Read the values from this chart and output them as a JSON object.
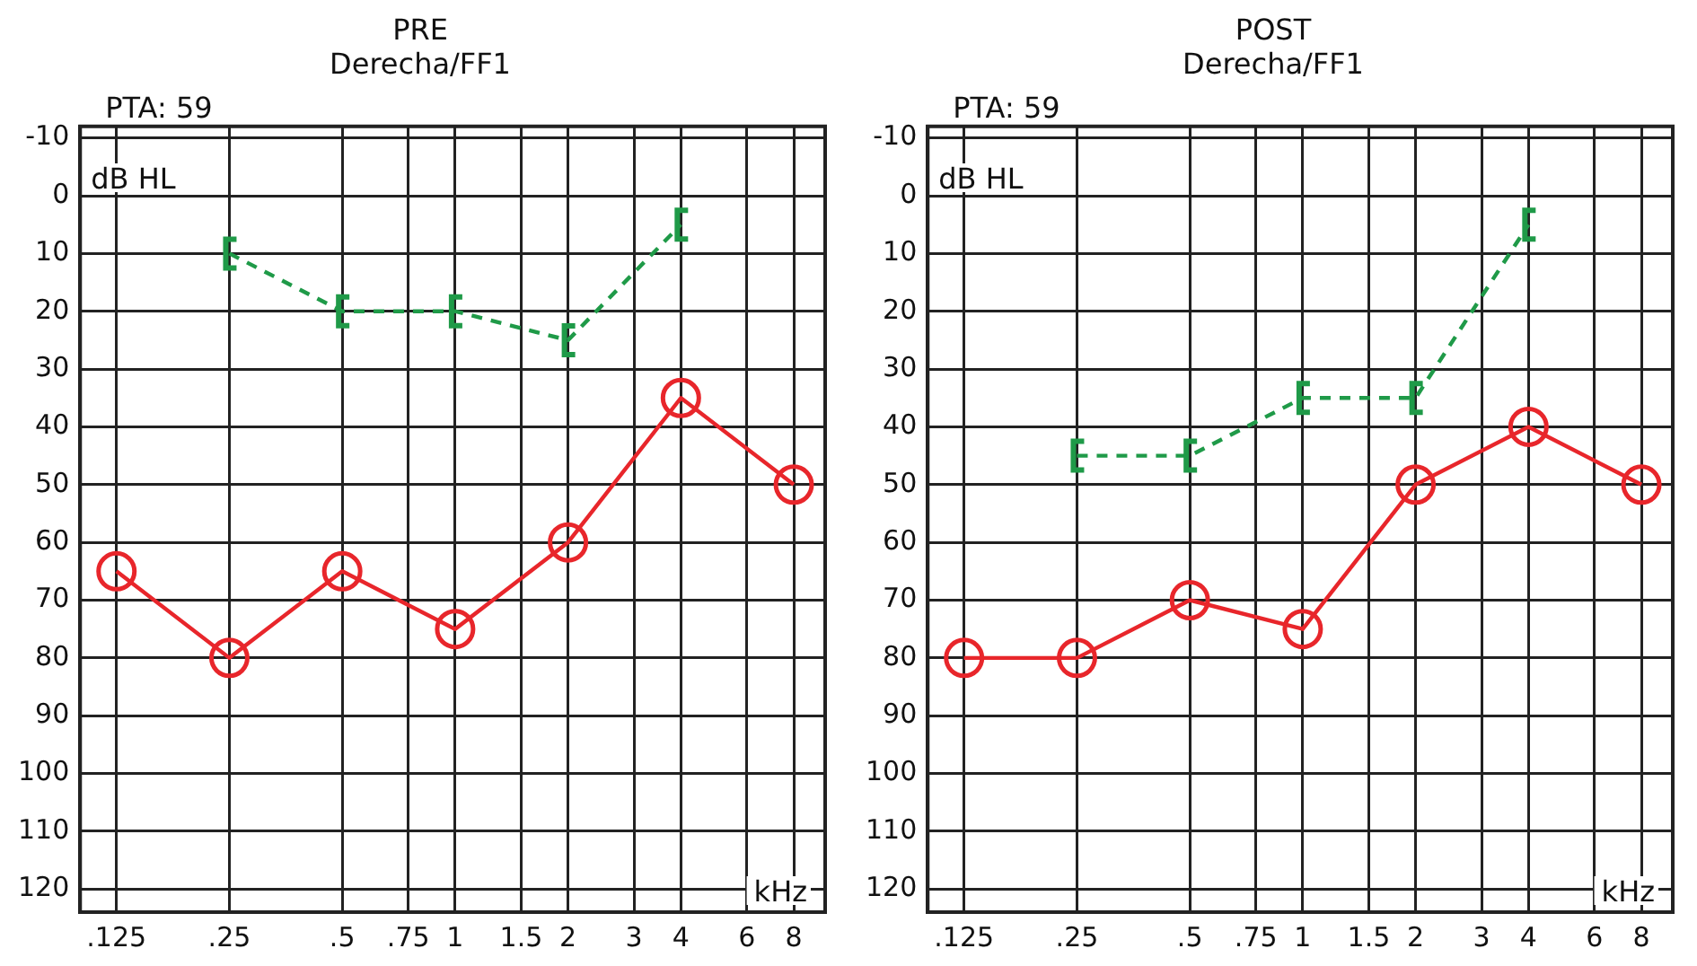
{
  "chart_data": [
    {
      "type": "line",
      "title": "PRE",
      "subtitle": "Derecha/FF1",
      "xlabel": "kHz",
      "ylabel": "dB HL",
      "annotations": [
        "PTA: 59"
      ],
      "log": "x",
      "xlim": [
        0.1,
        9.7
      ],
      "xticks": [
        {
          "value": 0.125,
          "label": ".125"
        },
        {
          "value": 0.25,
          "label": ".25"
        },
        {
          "value": 0.5,
          "label": ".5"
        },
        {
          "value": 0.75,
          "label": ".75"
        },
        1,
        1.5,
        2,
        3,
        4,
        6,
        8
      ],
      "ylim": [
        124,
        -12
      ],
      "yticks": [
        -10,
        0,
        10,
        20,
        30,
        40,
        50,
        60,
        70,
        80,
        90,
        100,
        110,
        120
      ],
      "grid": true,
      "series": [
        {
          "x": [
            0.125,
            0.25,
            0.5,
            1,
            2,
            4,
            8
          ],
          "values": [
            65,
            80,
            65,
            75,
            60,
            35,
            50
          ],
          "color": "#e8262b",
          "marker": "circle",
          "line_style": "solid"
        },
        {
          "x": [
            0.25,
            0.5,
            1,
            2,
            4
          ],
          "values": [
            10,
            20,
            20,
            25,
            5
          ],
          "color": "#1f9a48",
          "marker": "cross",
          "line_style": "dashed"
        }
      ]
    },
    {
      "type": "line",
      "title": "POST",
      "subtitle": "Derecha/FF1",
      "xlabel": "kHz",
      "ylabel": "dB HL",
      "annotations": [
        "PTA: 59"
      ],
      "log": "x",
      "xlim": [
        0.1,
        9.7
      ],
      "xticks": [
        {
          "value": 0.125,
          "label": ".125"
        },
        {
          "value": 0.25,
          "label": ".25"
        },
        {
          "value": 0.5,
          "label": ".5"
        },
        {
          "value": 0.75,
          "label": ".75"
        },
        1,
        1.5,
        2,
        3,
        4,
        6,
        8
      ],
      "ylim": [
        124,
        -12
      ],
      "yticks": [
        -10,
        0,
        10,
        20,
        30,
        40,
        50,
        60,
        70,
        80,
        90,
        100,
        110,
        120
      ],
      "grid": true,
      "series": [
        {
          "x": [
            0.125,
            0.25,
            0.5,
            1,
            2,
            4,
            8
          ],
          "values": [
            80,
            80,
            70,
            75,
            50,
            40,
            50
          ],
          "color": "#e8262b",
          "marker": "circle",
          "line_style": "solid"
        },
        {
          "x": [
            0.25,
            0.5,
            1,
            2,
            4
          ],
          "values": [
            45,
            45,
            35,
            35,
            5
          ],
          "color": "#1f9a48",
          "marker": "cross",
          "line_style": "dashed"
        }
      ]
    }
  ]
}
